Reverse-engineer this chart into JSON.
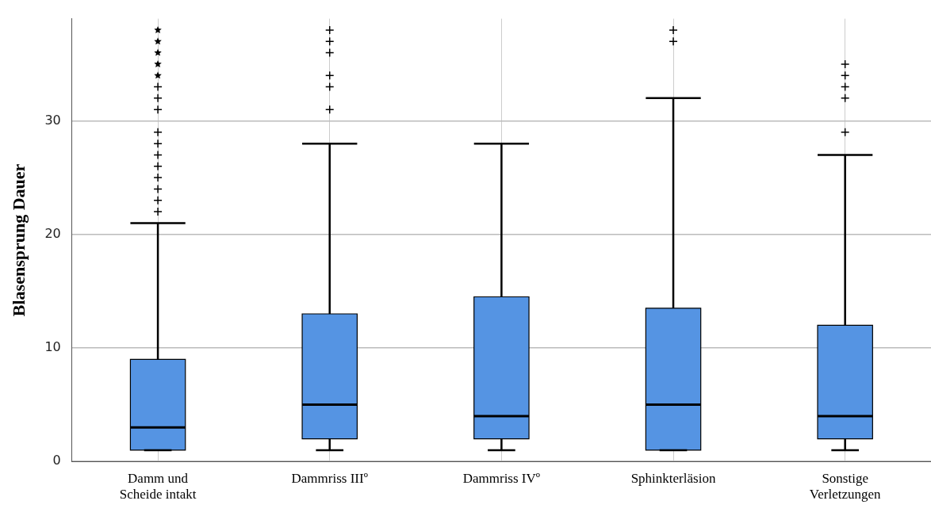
{
  "chart_data": {
    "type": "box",
    "ylabel": "Blasensprung Dauer",
    "categories": [
      "Damm und\nScheide intakt",
      "Dammriss IIIº",
      "Dammriss IVº",
      "Sphinkterläsion",
      "Sonstige\nVerletzungen"
    ],
    "ylim": [
      0,
      39
    ],
    "yticks": [
      0,
      10,
      20,
      30
    ],
    "grid": true,
    "marker": "cross",
    "series": [
      {
        "color": "#5594e3",
        "boxes": [
          {
            "low": 1,
            "q1": 1,
            "median": 3,
            "q3": 9,
            "high": 21,
            "outliers": [
              22,
              23,
              24,
              25,
              26,
              27,
              28,
              29,
              31,
              32,
              33,
              34,
              35,
              36,
              37,
              38
            ]
          },
          {
            "low": 1,
            "q1": 2,
            "median": 5,
            "q3": 13,
            "high": 28,
            "outliers": [
              31,
              33,
              34,
              36,
              37,
              38
            ]
          },
          {
            "low": 1,
            "q1": 2,
            "median": 4,
            "q3": 14.5,
            "high": 28
          },
          {
            "low": 1,
            "q1": 1,
            "median": 5,
            "q3": 13.5,
            "high": 32,
            "outliers": [
              37,
              38
            ]
          },
          {
            "low": 1,
            "q1": 2,
            "median": 4,
            "q3": 12,
            "high": 27,
            "outliers": [
              29,
              32,
              33,
              34,
              35
            ]
          }
        ]
      }
    ]
  }
}
